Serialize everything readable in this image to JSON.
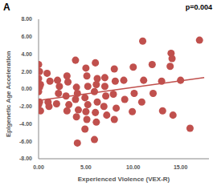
{
  "chart_data": {
    "type": "scatter",
    "title": "A",
    "annotations": [
      "p=0.004"
    ],
    "x_label": "Experienced Violence (VEX-R)",
    "y_label": "Epigenetic Age Acceleration",
    "color": "#c0504d",
    "marker": "circle",
    "grid": false,
    "xlim": [
      0,
      18
    ],
    "ylim": [
      -8,
      8
    ],
    "xticks": [
      {
        "value": 0,
        "label": "0.00"
      },
      {
        "value": 5,
        "label": "5.00"
      },
      {
        "value": 10,
        "label": "10.00"
      },
      {
        "value": 15,
        "label": "15.00"
      }
    ],
    "yticks": [
      {
        "value": -8,
        "label": "-8.00"
      },
      {
        "value": -6,
        "label": "-6.00"
      },
      {
        "value": -4,
        "label": "-4.00"
      },
      {
        "value": -2,
        "label": "-2.00"
      },
      {
        "value": 0,
        "label": "0.00"
      },
      {
        "value": 2,
        "label": "2.00"
      },
      {
        "value": 4,
        "label": "4.00"
      },
      {
        "value": 6,
        "label": "6.00"
      },
      {
        "value": 8,
        "label": "8.00"
      }
    ],
    "x": [
      0,
      0.1,
      0,
      0.2,
      0,
      0.1,
      0,
      0.2,
      0.1,
      1,
      1.1,
      0.9,
      1.2,
      2,
      2.1,
      1.9,
      2.2,
      3,
      3.1,
      2.9,
      3.2,
      3,
      4,
      4.1,
      3.9,
      4.2,
      4,
      4.1,
      3.9,
      5,
      5.1,
      4.9,
      5.2,
      5,
      5.1,
      4.9,
      5.2,
      6,
      6.1,
      5.9,
      6.2,
      6,
      6.1,
      5.9,
      6.2,
      7,
      7.1,
      6.9,
      7.2,
      7,
      8,
      8.1,
      7.9,
      8.2,
      8,
      9,
      9.1,
      10,
      10.1,
      9.9,
      11,
      11.1,
      10.9,
      12,
      12.1,
      13,
      13.1,
      14,
      14.1,
      13.9,
      14.2,
      15,
      16,
      17
    ],
    "values": [
      2.8,
      2.0,
      1.2,
      0.5,
      -0.3,
      -1.5,
      -1.8,
      -2.5,
      0.2,
      -1.5,
      -2.0,
      1.8,
      0.9,
      1.0,
      -0.5,
      -1.7,
      0.3,
      1.5,
      0.8,
      -0.8,
      -1.8,
      -2.5,
      0.2,
      -0.5,
      -1.2,
      -2.4,
      -3.2,
      -6.2,
      3.3,
      2.4,
      1.5,
      -1.0,
      -1.8,
      -2.6,
      -3.5,
      -4.6,
      0.3,
      3.0,
      0.5,
      -0.3,
      -1.5,
      -2.7,
      -3.8,
      -5.8,
      1.2,
      1.3,
      -0.8,
      -2.0,
      -3.0,
      0.3,
      2.3,
      0.9,
      -0.6,
      -2.2,
      -3.5,
      1.0,
      -1.2,
      2.5,
      -0.5,
      -2.6,
      5.5,
      1.0,
      -1.5,
      2.8,
      -0.5,
      0.9,
      -2.5,
      4.1,
      3.5,
      2.6,
      -3.0,
      1.0,
      -4.5,
      5.6
    ],
    "trend": {
      "x": [
        0,
        17.5
      ],
      "values": [
        -1.3,
        1.3
      ]
    }
  }
}
